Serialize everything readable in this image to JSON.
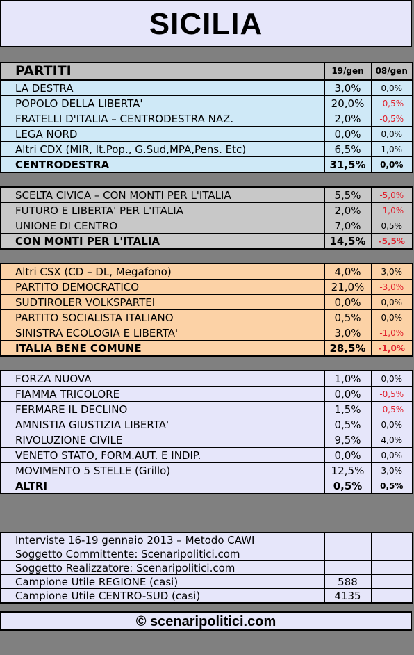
{
  "title": "SICILIA",
  "header": {
    "col1": "PARTITI",
    "col2": "19/gen",
    "col3": "08/gen"
  },
  "groups": [
    {
      "rows": [
        {
          "name": "LA DESTRA",
          "value": "3,0%",
          "delta": "0,0%"
        },
        {
          "name": "POPOLO DELLA LIBERTA'",
          "value": "20,0%",
          "delta": "-0,5%"
        },
        {
          "name": "FRATELLI D'ITALIA – CENTRODESTRA NAZ.",
          "value": "2,0%",
          "delta": "-0,5%"
        },
        {
          "name": "LEGA NORD",
          "value": "0,0%",
          "delta": "0,0%"
        },
        {
          "name": "Altri CDX (MIR, It.Pop., G.Sud,MPA,Pens. Etc)",
          "value": "6,5%",
          "delta": "1,0%"
        },
        {
          "name": "CENTRODESTRA",
          "value": "31,5%",
          "delta": "0,0%"
        }
      ]
    },
    {
      "rows": [
        {
          "name": "SCELTA CIVICA – CON MONTI PER L'ITALIA",
          "value": "5,5%",
          "delta": "-5,0%"
        },
        {
          "name": "FUTURO E LIBERTA' PER L'ITALIA",
          "value": "2,0%",
          "delta": "-1,0%"
        },
        {
          "name": "UNIONE DI CENTRO",
          "value": "7,0%",
          "delta": "0,5%"
        },
        {
          "name": "CON MONTI PER L'ITALIA",
          "value": "14,5%",
          "delta": "-5,5%"
        }
      ]
    },
    {
      "rows": [
        {
          "name": "Altri CSX (CD – DL, Megafono)",
          "value": "4,0%",
          "delta": "3,0%"
        },
        {
          "name": "PARTITO DEMOCRATICO",
          "value": "21,0%",
          "delta": "-3,0%"
        },
        {
          "name": "SUDTIROLER VOLKSPARTEI",
          "value": "0,0%",
          "delta": "0,0%"
        },
        {
          "name": "PARTITO SOCIALISTA ITALIANO",
          "value": "0,5%",
          "delta": "0,0%"
        },
        {
          "name": "SINISTRA ECOLOGIA E LIBERTA'",
          "value": "3,0%",
          "delta": "-1,0%"
        },
        {
          "name": "ITALIA BENE COMUNE",
          "value": "28,5%",
          "delta": "-1,0%"
        }
      ]
    },
    {
      "rows": [
        {
          "name": "FORZA NUOVA",
          "value": "1,0%",
          "delta": "0,0%"
        },
        {
          "name": "FIAMMA TRICOLORE",
          "value": "0,0%",
          "delta": "-0,5%"
        },
        {
          "name": "FERMARE IL DECLINO",
          "value": "1,5%",
          "delta": "-0,5%"
        },
        {
          "name": "AMNISTIA GIUSTIZIA LIBERTA'",
          "value": "0,5%",
          "delta": "0,0%"
        },
        {
          "name": "RIVOLUZIONE CIVILE",
          "value": "9,5%",
          "delta": "4,0%"
        },
        {
          "name": "VENETO STATO, FORM.AUT. E INDIP.",
          "value": "0,0%",
          "delta": "0,0%"
        },
        {
          "name": "MOVIMENTO 5 STELLE (Grillo)",
          "value": "12,5%",
          "delta": "3,0%"
        },
        {
          "name": "ALTRI",
          "value": "0,5%",
          "delta": "0,5%"
        }
      ]
    }
  ],
  "info": [
    {
      "label": "Interviste 16-19 gennaio 2013 – Metodo CAWI",
      "value": ""
    },
    {
      "label": "Soggetto Committente: Scenaripolitici.com",
      "value": ""
    },
    {
      "label": "Soggetto Realizzatore: Scenaripolitici.com",
      "value": ""
    },
    {
      "label": "Campione Utile REGIONE (casi)",
      "value": "588"
    },
    {
      "label": "Campione Utile CENTRO-SUD (casi)",
      "value": "4135"
    }
  ],
  "footer": "© scenaripolitici.com",
  "colors": {
    "negative": "#e0202c",
    "cdx": "#cfe9f7",
    "monti": "#c8c8c8",
    "csx": "#fcd2a6",
    "others": "#e6e6fa"
  }
}
